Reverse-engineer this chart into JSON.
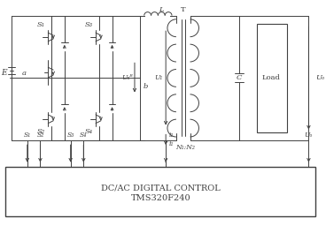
{
  "bg_color": "#ffffff",
  "line_color": "#404040",
  "title1": "DC/AC DIGITAL CONTROL",
  "title2": "TMS320F240",
  "label_E": "E",
  "label_a": "a",
  "label_b": "b",
  "label_L": "L",
  "label_T": "T",
  "label_C": "C",
  "label_Load": "Load",
  "label_Uab": "Uₐᴮ",
  "label_U1": "U₁",
  "label_N1N2": "N₁:N₂",
  "label_Uo": "Uₒ",
  "label_i1": "i₁",
  "label_S1": "S₁",
  "label_S2": "S₂",
  "label_S3": "S₃",
  "label_S4": "S₄",
  "fontsize": 6.5
}
